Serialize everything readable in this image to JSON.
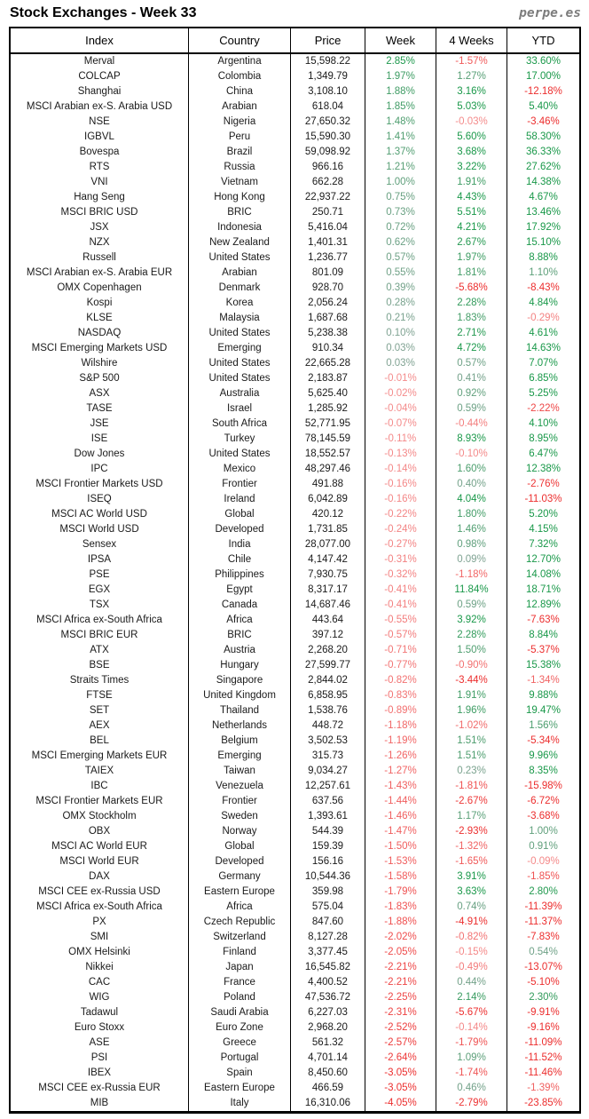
{
  "header": {
    "title": "Stock Exchanges - Week 33",
    "brand": "perpe.es"
  },
  "colors": {
    "positive_low": "#82A394",
    "positive_high": "#199849",
    "negative_low": "#F48C8C",
    "negative_high": "#EC2D2D",
    "text": "#1A1A1A",
    "border": "#000000",
    "brand_gray": "#7C7C7C"
  },
  "chart_data": {
    "type": "table",
    "title": "Stock Exchanges - Week 33",
    "columns": [
      "Index",
      "Country",
      "Price",
      "Week",
      "4 Weeks",
      "YTD"
    ],
    "rows": [
      [
        "Merval",
        "Argentina",
        "15,598.22",
        "2.85%",
        "-1.57%",
        "33.60%"
      ],
      [
        "COLCAP",
        "Colombia",
        "1,349.79",
        "1.97%",
        "1.27%",
        "17.00%"
      ],
      [
        "Shanghai",
        "China",
        "3,108.10",
        "1.88%",
        "3.16%",
        "-12.18%"
      ],
      [
        "MSCI Arabian ex-S. Arabia USD",
        "Arabian",
        "618.04",
        "1.85%",
        "5.03%",
        "5.40%"
      ],
      [
        "NSE",
        "Nigeria",
        "27,650.32",
        "1.48%",
        "-0.03%",
        "-3.46%"
      ],
      [
        "IGBVL",
        "Peru",
        "15,590.30",
        "1.41%",
        "5.60%",
        "58.30%"
      ],
      [
        "Bovespa",
        "Brazil",
        "59,098.92",
        "1.37%",
        "3.68%",
        "36.33%"
      ],
      [
        "RTS",
        "Russia",
        "966.16",
        "1.21%",
        "3.22%",
        "27.62%"
      ],
      [
        "VNI",
        "Vietnam",
        "662.28",
        "1.00%",
        "1.91%",
        "14.38%"
      ],
      [
        "Hang Seng",
        "Hong Kong",
        "22,937.22",
        "0.75%",
        "4.43%",
        "4.67%"
      ],
      [
        "MSCI BRIC USD",
        "BRIC",
        "250.71",
        "0.73%",
        "5.51%",
        "13.46%"
      ],
      [
        "JSX",
        "Indonesia",
        "5,416.04",
        "0.72%",
        "4.21%",
        "17.92%"
      ],
      [
        "NZX",
        "New Zealand",
        "1,401.31",
        "0.62%",
        "2.67%",
        "15.10%"
      ],
      [
        "Russell",
        "United States",
        "1,236.77",
        "0.57%",
        "1.97%",
        "8.88%"
      ],
      [
        "MSCI Arabian ex-S. Arabia EUR",
        "Arabian",
        "801.09",
        "0.55%",
        "1.81%",
        "1.10%"
      ],
      [
        "OMX Copenhagen",
        "Denmark",
        "928.70",
        "0.39%",
        "-5.68%",
        "-8.43%"
      ],
      [
        "Kospi",
        "Korea",
        "2,056.24",
        "0.28%",
        "2.28%",
        "4.84%"
      ],
      [
        "KLSE",
        "Malaysia",
        "1,687.68",
        "0.21%",
        "1.83%",
        "-0.29%"
      ],
      [
        "NASDAQ",
        "United States",
        "5,238.38",
        "0.10%",
        "2.71%",
        "4.61%"
      ],
      [
        "MSCI Emerging Markets USD",
        "Emerging",
        "910.34",
        "0.03%",
        "4.72%",
        "14.63%"
      ],
      [
        "Wilshire",
        "United States",
        "22,665.28",
        "0.03%",
        "0.57%",
        "7.07%"
      ],
      [
        "S&P 500",
        "United States",
        "2,183.87",
        "-0.01%",
        "0.41%",
        "6.85%"
      ],
      [
        "ASX",
        "Australia",
        "5,625.40",
        "-0.02%",
        "0.92%",
        "5.25%"
      ],
      [
        "TASE",
        "Israel",
        "1,285.92",
        "-0.04%",
        "0.59%",
        "-2.22%"
      ],
      [
        "JSE",
        "South Africa",
        "52,771.95",
        "-0.07%",
        "-0.44%",
        "4.10%"
      ],
      [
        "ISE",
        "Turkey",
        "78,145.59",
        "-0.11%",
        "8.93%",
        "8.95%"
      ],
      [
        "Dow Jones",
        "United States",
        "18,552.57",
        "-0.13%",
        "-0.10%",
        "6.47%"
      ],
      [
        "IPC",
        "Mexico",
        "48,297.46",
        "-0.14%",
        "1.60%",
        "12.38%"
      ],
      [
        "MSCI Frontier Markets USD",
        "Frontier",
        "491.88",
        "-0.16%",
        "0.40%",
        "-2.76%"
      ],
      [
        "ISEQ",
        "Ireland",
        "6,042.89",
        "-0.16%",
        "4.04%",
        "-11.03%"
      ],
      [
        "MSCI AC World USD",
        "Global",
        "420.12",
        "-0.22%",
        "1.80%",
        "5.20%"
      ],
      [
        "MSCI World USD",
        "Developed",
        "1,731.85",
        "-0.24%",
        "1.46%",
        "4.15%"
      ],
      [
        "Sensex",
        "India",
        "28,077.00",
        "-0.27%",
        "0.98%",
        "7.32%"
      ],
      [
        "IPSA",
        "Chile",
        "4,147.42",
        "-0.31%",
        "0.09%",
        "12.70%"
      ],
      [
        "PSE",
        "Philippines",
        "7,930.75",
        "-0.32%",
        "-1.18%",
        "14.08%"
      ],
      [
        "EGX",
        "Egypt",
        "8,317.17",
        "-0.41%",
        "11.84%",
        "18.71%"
      ],
      [
        "TSX",
        "Canada",
        "14,687.46",
        "-0.41%",
        "0.59%",
        "12.89%"
      ],
      [
        "MSCI Africa ex-South Africa",
        "Africa",
        "443.64",
        "-0.55%",
        "3.92%",
        "-7.63%"
      ],
      [
        "MSCI BRIC EUR",
        "BRIC",
        "397.12",
        "-0.57%",
        "2.28%",
        "8.84%"
      ],
      [
        "ATX",
        "Austria",
        "2,268.20",
        "-0.71%",
        "1.50%",
        "-5.37%"
      ],
      [
        "BSE",
        "Hungary",
        "27,599.77",
        "-0.77%",
        "-0.90%",
        "15.38%"
      ],
      [
        "Straits Times",
        "Singapore",
        "2,844.02",
        "-0.82%",
        "-3.44%",
        "-1.34%"
      ],
      [
        "FTSE",
        "United Kingdom",
        "6,858.95",
        "-0.83%",
        "1.91%",
        "9.88%"
      ],
      [
        "SET",
        "Thailand",
        "1,538.76",
        "-0.89%",
        "1.96%",
        "19.47%"
      ],
      [
        "AEX",
        "Netherlands",
        "448.72",
        "-1.18%",
        "-1.02%",
        "1.56%"
      ],
      [
        "BEL",
        "Belgium",
        "3,502.53",
        "-1.19%",
        "1.51%",
        "-5.34%"
      ],
      [
        "MSCI Emerging Markets EUR",
        "Emerging",
        "315.73",
        "-1.26%",
        "1.51%",
        "9.96%"
      ],
      [
        "TAIEX",
        "Taiwan",
        "9,034.27",
        "-1.27%",
        "0.23%",
        "8.35%"
      ],
      [
        "IBC",
        "Venezuela",
        "12,257.61",
        "-1.43%",
        "-1.81%",
        "-15.98%"
      ],
      [
        "MSCI Frontier Markets EUR",
        "Frontier",
        "637.56",
        "-1.44%",
        "-2.67%",
        "-6.72%"
      ],
      [
        "OMX Stockholm",
        "Sweden",
        "1,393.61",
        "-1.46%",
        "1.17%",
        "-3.68%"
      ],
      [
        "OBX",
        "Norway",
        "544.39",
        "-1.47%",
        "-2.93%",
        "1.00%"
      ],
      [
        "MSCI AC World EUR",
        "Global",
        "159.39",
        "-1.50%",
        "-1.32%",
        "0.91%"
      ],
      [
        "MSCI World EUR",
        "Developed",
        "156.16",
        "-1.53%",
        "-1.65%",
        "-0.09%"
      ],
      [
        "DAX",
        "Germany",
        "10,544.36",
        "-1.58%",
        "3.91%",
        "-1.85%"
      ],
      [
        "MSCI CEE ex-Russia USD",
        "Eastern Europe",
        "359.98",
        "-1.79%",
        "3.63%",
        "2.80%"
      ],
      [
        "MSCI Africa ex-South Africa",
        "Africa",
        "575.04",
        "-1.83%",
        "0.74%",
        "-11.39%"
      ],
      [
        "PX",
        "Czech Republic",
        "847.60",
        "-1.88%",
        "-4.91%",
        "-11.37%"
      ],
      [
        "SMI",
        "Switzerland",
        "8,127.28",
        "-2.02%",
        "-0.82%",
        "-7.83%"
      ],
      [
        "OMX Helsinki",
        "Finland",
        "3,377.45",
        "-2.05%",
        "-0.15%",
        "0.54%"
      ],
      [
        "Nikkei",
        "Japan",
        "16,545.82",
        "-2.21%",
        "-0.49%",
        "-13.07%"
      ],
      [
        "CAC",
        "France",
        "4,400.52",
        "-2.21%",
        "0.44%",
        "-5.10%"
      ],
      [
        "WIG",
        "Poland",
        "47,536.72",
        "-2.25%",
        "2.14%",
        "2.30%"
      ],
      [
        "Tadawul",
        "Saudi Arabia",
        "6,227.03",
        "-2.31%",
        "-5.67%",
        "-9.91%"
      ],
      [
        "Euro Stoxx",
        "Euro Zone",
        "2,968.20",
        "-2.52%",
        "-0.14%",
        "-9.16%"
      ],
      [
        "ASE",
        "Greece",
        "561.32",
        "-2.57%",
        "-1.79%",
        "-11.09%"
      ],
      [
        "PSI",
        "Portugal",
        "4,701.14",
        "-2.64%",
        "1.09%",
        "-11.52%"
      ],
      [
        "IBEX",
        "Spain",
        "8,450.60",
        "-3.05%",
        "-1.74%",
        "-11.46%"
      ],
      [
        "MSCI CEE ex-Russia EUR",
        "Eastern Europe",
        "466.59",
        "-3.05%",
        "0.46%",
        "-1.39%"
      ],
      [
        "MIB",
        "Italy",
        "16,310.06",
        "-4.05%",
        "-2.79%",
        "-23.85%"
      ]
    ]
  }
}
